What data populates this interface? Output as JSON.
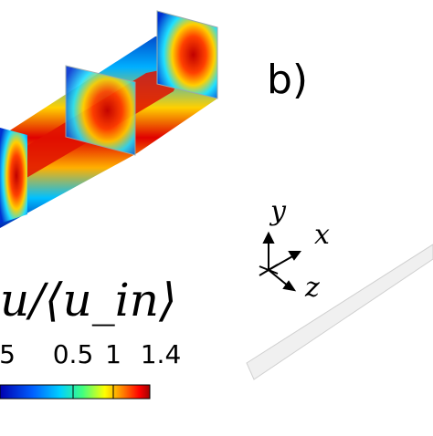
{
  "panel_label": "b)",
  "colorbar": {
    "title": "u/⟨u_in⟩",
    "ticks": [
      "5",
      "0.5",
      "1",
      "1.4"
    ],
    "colors": [
      "#0000b0",
      "#0060ff",
      "#00d0ff",
      "#40ff80",
      "#ffff00",
      "#ff8000",
      "#ff0000",
      "#a00000"
    ]
  },
  "axes": {
    "y": "y",
    "x": "x",
    "z": "z"
  }
}
